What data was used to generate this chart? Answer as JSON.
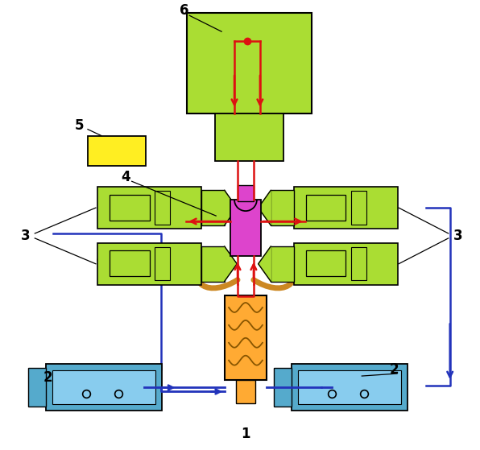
{
  "bg_color": "#ffffff",
  "fig_w": 5.96,
  "fig_h": 5.59,
  "colors": {
    "green_light": "#aadd33",
    "yellow": "#ffee22",
    "magenta": "#dd44cc",
    "orange": "#ffaa33",
    "blue": "#2233bb",
    "cyan": "#55aacc",
    "red": "#dd1111",
    "rope": "#cc8822",
    "black": "#111111",
    "white": "#ffffff"
  }
}
